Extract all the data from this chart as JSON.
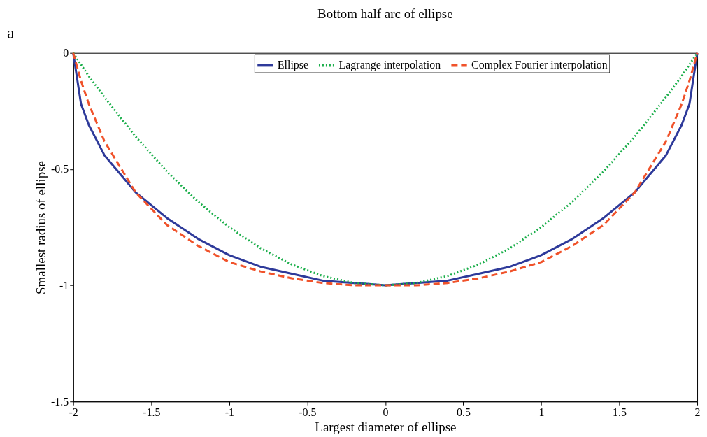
{
  "chart_data": {
    "type": "line",
    "title": "Bottom half arc of ellipse",
    "xlabel": "Largest diameter of ellipse",
    "ylabel": "Smallest radius of ellipse",
    "annotations": [
      "a"
    ],
    "x": [
      -2,
      -1.95,
      -1.9,
      -1.8,
      -1.6,
      -1.4,
      -1.2,
      -1,
      -0.8,
      -0.6,
      -0.4,
      -0.2,
      0,
      0.2,
      0.4,
      0.6,
      0.8,
      1,
      1.2,
      1.4,
      1.6,
      1.8,
      1.9,
      1.95,
      2
    ],
    "series": [
      {
        "name": "Ellipse",
        "color": "#2e3a9a",
        "line_style": "solid",
        "values": [
          0,
          -0.22,
          -0.31,
          -0.44,
          -0.6,
          -0.71,
          -0.8,
          -0.87,
          -0.92,
          -0.95,
          -0.98,
          -0.99,
          -1,
          -0.99,
          -0.98,
          -0.95,
          -0.92,
          -0.87,
          -0.8,
          -0.71,
          -0.6,
          -0.44,
          -0.31,
          -0.22,
          0
        ]
      },
      {
        "name": "Lagrange interpolation",
        "color": "#1aae4a",
        "line_style": "dotted",
        "values": [
          0,
          -0.05,
          -0.1,
          -0.19,
          -0.36,
          -0.51,
          -0.64,
          -0.75,
          -0.84,
          -0.91,
          -0.96,
          -0.99,
          -1,
          -0.99,
          -0.96,
          -0.91,
          -0.84,
          -0.75,
          -0.64,
          -0.51,
          -0.36,
          -0.19,
          -0.1,
          -0.05,
          0
        ]
      },
      {
        "name": "Complex Fourier interpolation",
        "color": "#f0522a",
        "line_style": "dashed",
        "values": [
          0,
          -0.12,
          -0.22,
          -0.38,
          -0.6,
          -0.74,
          -0.83,
          -0.9,
          -0.94,
          -0.97,
          -0.99,
          -1,
          -1,
          -1,
          -0.99,
          -0.97,
          -0.94,
          -0.9,
          -0.83,
          -0.74,
          -0.6,
          -0.38,
          -0.22,
          -0.12,
          0
        ]
      }
    ],
    "xlim": [
      -2,
      2
    ],
    "xticks": [
      -2,
      -1.5,
      -1,
      -0.5,
      0,
      0.5,
      1,
      1.5,
      2
    ],
    "ylim": [
      -1.5,
      0
    ],
    "yticks": [
      -1.5,
      -1,
      -0.5,
      0
    ],
    "grid": false,
    "legend": "top",
    "marker": "none"
  }
}
